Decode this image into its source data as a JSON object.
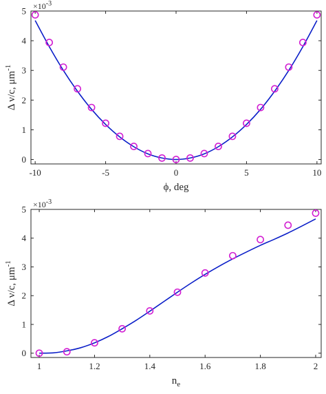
{
  "colors": {
    "fit": "#0a1ec8",
    "marker": "#d21fd2",
    "axis": "#262626"
  },
  "chart_data": [
    {
      "type": "scatter",
      "title": "",
      "xlabel": "ϕ, deg",
      "ylabel": "Δ ν/c, μm",
      "ylabel_sup": "-1",
      "y_multiplier": "×10",
      "y_multiplier_sup": "-3",
      "xlim": [
        -10.3,
        10.3
      ],
      "ylim": [
        -0.15,
        5.0
      ],
      "xticks": [
        -10,
        -5,
        0,
        5,
        10
      ],
      "xtick_labels": [
        "-10",
        "-5",
        "0",
        "5",
        "10"
      ],
      "yticks": [
        0,
        1,
        2,
        3,
        4,
        5
      ],
      "ytick_labels": [
        "0",
        "1",
        "2",
        "3",
        "4",
        "5"
      ],
      "grid": false,
      "series": [
        {
          "kind": "markers",
          "x": [
            -10,
            -9,
            -8,
            -7,
            -6,
            -5,
            -4,
            -3,
            -2,
            -1,
            0,
            1,
            2,
            3,
            4,
            5,
            6,
            7,
            8,
            9,
            10
          ],
          "y": [
            4.87,
            3.94,
            3.11,
            2.38,
            1.75,
            1.22,
            0.78,
            0.44,
            0.2,
            0.05,
            0.0,
            0.05,
            0.2,
            0.44,
            0.78,
            1.22,
            1.75,
            2.38,
            3.11,
            3.94,
            4.87
          ]
        },
        {
          "kind": "line",
          "x": [
            -10,
            -9,
            -8,
            -7,
            -6,
            -5,
            -4,
            -3,
            -2,
            -1,
            0,
            1,
            2,
            3,
            4,
            5,
            6,
            7,
            8,
            9,
            10
          ],
          "y": [
            4.68,
            3.8,
            3.0,
            2.3,
            1.69,
            1.18,
            0.76,
            0.43,
            0.19,
            0.05,
            0.0,
            0.05,
            0.19,
            0.43,
            0.76,
            1.18,
            1.69,
            2.3,
            3.0,
            3.8,
            4.68
          ]
        }
      ]
    },
    {
      "type": "scatter",
      "title": "",
      "xlabel": "n",
      "xlabel_sub": "e",
      "ylabel": "Δ ν/c, μm",
      "ylabel_sup": "-1",
      "y_multiplier": "×10",
      "y_multiplier_sup": "-3",
      "xlim": [
        0.97,
        2.02
      ],
      "ylim": [
        -0.15,
        5.0
      ],
      "xticks": [
        1,
        1.2,
        1.4,
        1.6,
        1.8,
        2
      ],
      "xtick_labels": [
        "1",
        "1.2",
        "1.4",
        "1.6",
        "1.8",
        "2"
      ],
      "yticks": [
        0,
        1,
        2,
        3,
        4,
        5
      ],
      "ytick_labels": [
        "0",
        "1",
        "2",
        "3",
        "4",
        "5"
      ],
      "grid": false,
      "series": [
        {
          "kind": "markers",
          "x": [
            1.0,
            1.1,
            1.2,
            1.3,
            1.4,
            1.5,
            1.6,
            1.7,
            1.8,
            1.9,
            2.0
          ],
          "y": [
            0.0,
            0.05,
            0.36,
            0.85,
            1.47,
            2.12,
            2.79,
            3.39,
            3.95,
            4.45,
            4.87
          ]
        },
        {
          "kind": "line",
          "x": [
            1.0,
            1.05,
            1.1,
            1.15,
            1.2,
            1.25,
            1.3,
            1.35,
            1.4,
            1.45,
            1.5,
            1.55,
            1.6,
            1.65,
            1.7,
            1.75,
            1.8,
            1.85,
            1.9,
            1.95,
            2.0
          ],
          "y": [
            0.0,
            0.01,
            0.08,
            0.19,
            0.36,
            0.58,
            0.85,
            1.14,
            1.46,
            1.79,
            2.12,
            2.44,
            2.74,
            3.02,
            3.28,
            3.52,
            3.75,
            3.96,
            4.18,
            4.42,
            4.67
          ]
        }
      ]
    }
  ]
}
